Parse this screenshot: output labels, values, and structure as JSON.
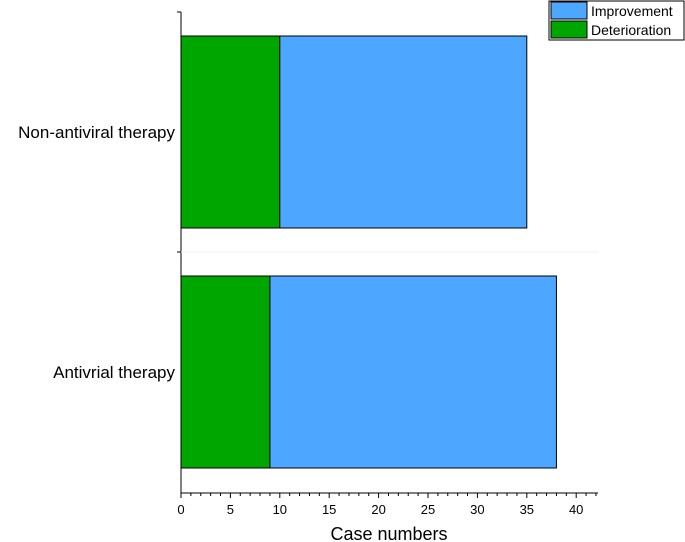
{
  "chart_data": {
    "type": "bar",
    "orientation": "horizontal",
    "stacked": true,
    "categories": [
      "Non-antiviral therapy",
      "Antivrial therapy"
    ],
    "series": [
      {
        "name": "Deterioration",
        "values": [
          10,
          9
        ],
        "color": "#00a600"
      },
      {
        "name": "Improvement",
        "values": [
          25,
          29
        ],
        "color": "#4da6ff"
      }
    ],
    "xlabel": "Case numbers",
    "ylabel": "",
    "xlim": [
      0,
      42
    ],
    "xticks": [
      0,
      5,
      10,
      15,
      20,
      25,
      30,
      35,
      40
    ],
    "legend": {
      "position": "top-right",
      "order": [
        "Improvement",
        "Deterioration"
      ]
    },
    "grid": false
  }
}
